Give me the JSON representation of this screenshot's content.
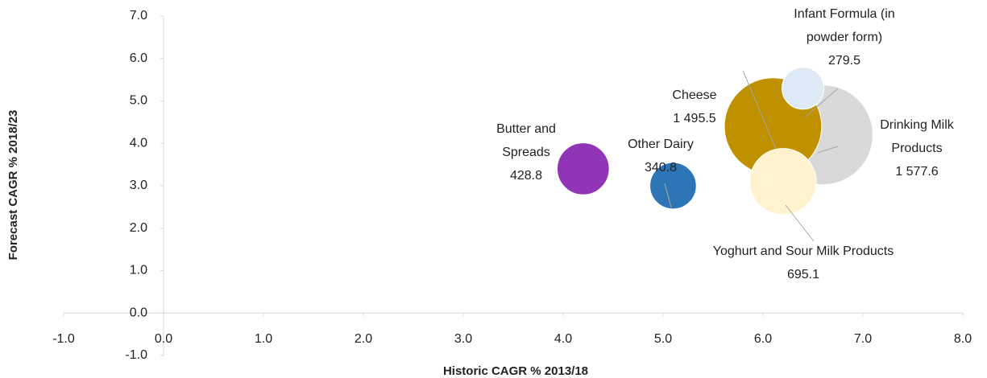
{
  "chart_data": {
    "type": "bubble",
    "x_label": "Historic CAGR % 2013/18",
    "y_label": "Forecast CAGR %  2018/23",
    "xlim": [
      -1,
      8
    ],
    "ylim": [
      -1,
      7
    ],
    "xticks": [
      {
        "value": -1,
        "label": "-1.0"
      },
      {
        "value": 0,
        "label": "0.0"
      },
      {
        "value": 1,
        "label": "1.0"
      },
      {
        "value": 2,
        "label": "2.0"
      },
      {
        "value": 3,
        "label": "3.0"
      },
      {
        "value": 4,
        "label": "4.0"
      },
      {
        "value": 5,
        "label": "5.0"
      },
      {
        "value": 6,
        "label": "6.0"
      },
      {
        "value": 7,
        "label": "7.0"
      },
      {
        "value": 8,
        "label": "8.0"
      }
    ],
    "yticks": [
      {
        "value": -1,
        "label": "-1.0"
      },
      {
        "value": 0,
        "label": "0.0"
      },
      {
        "value": 1,
        "label": "1.0"
      },
      {
        "value": 2,
        "label": "2.0"
      },
      {
        "value": 3,
        "label": "3.0"
      },
      {
        "value": 4,
        "label": "4.0"
      },
      {
        "value": 5,
        "label": "5.0"
      },
      {
        "value": 6,
        "label": "6.0"
      },
      {
        "value": 7,
        "label": "7.0"
      }
    ],
    "series": [
      {
        "name": "Butter and Spreads",
        "color": "#9035b5",
        "x": [
          4.2
        ],
        "values": [
          3.4
        ],
        "sizes": [
          428.8
        ],
        "value_labels": [
          "428.8"
        ]
      },
      {
        "name": "Other Dairy",
        "color": "#2e75b6",
        "x": [
          5.1
        ],
        "values": [
          3.0
        ],
        "sizes": [
          340.8
        ],
        "value_labels": [
          "340.8"
        ]
      },
      {
        "name": "Drinking Milk Products",
        "color": "#d9d9d9",
        "x": [
          6.6
        ],
        "values": [
          4.2
        ],
        "sizes": [
          1577.6
        ],
        "value_labels": [
          "1 577.6"
        ]
      },
      {
        "name": "Cheese",
        "color": "#bf9000",
        "x": [
          6.1
        ],
        "values": [
          4.4
        ],
        "sizes": [
          1495.5
        ],
        "value_labels": [
          "1 495.5"
        ]
      },
      {
        "name": "Infant Formula (in powder form)",
        "color": "#deebf7",
        "x": [
          6.4
        ],
        "values": [
          5.3
        ],
        "sizes": [
          279.5
        ],
        "value_labels": [
          "279.5"
        ]
      },
      {
        "name": "Yoghurt and Sour Milk Products",
        "color": "#fff2cc",
        "x": [
          6.2
        ],
        "values": [
          3.1
        ],
        "sizes": [
          695.1
        ],
        "value_labels": [
          "695.1"
        ]
      }
    ]
  }
}
